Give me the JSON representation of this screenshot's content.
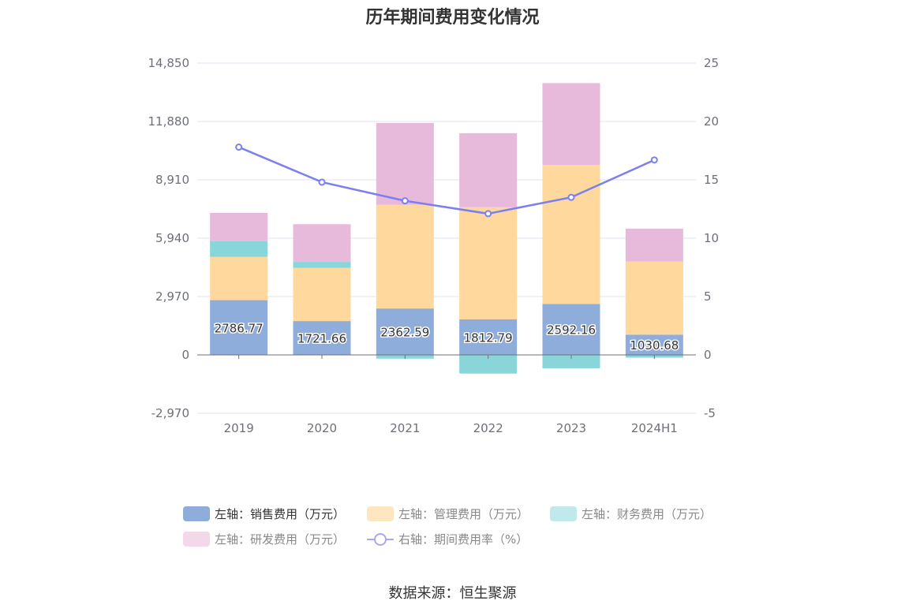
{
  "chart_data": {
    "type": "bar",
    "title": "历年期间费用变化情况",
    "categories": [
      "2019",
      "2020",
      "2021",
      "2022",
      "2023",
      "2024H1"
    ],
    "left_axis": {
      "ticks": [
        "14,850",
        "11,880",
        "8,910",
        "5,940",
        "2,970",
        "0",
        "-2,970"
      ],
      "ylim": [
        -2970,
        14850
      ]
    },
    "right_axis": {
      "ticks": [
        "25",
        "20",
        "15",
        "10",
        "5",
        "0",
        "-5"
      ],
      "ylim": [
        -5,
        25
      ]
    },
    "series": [
      {
        "name": "左轴：销售费用（万元）",
        "type": "bar",
        "axis": "left",
        "color": "#8eaddb",
        "values": [
          2786.77,
          1721.66,
          2362.59,
          1812.79,
          2592.16,
          1030.68
        ],
        "labels": [
          "2786.77",
          "1721.66",
          "2362.59",
          "1812.79",
          "2592.16",
          "1030.68"
        ]
      },
      {
        "name": "左轴：管理费用（万元）",
        "type": "bar",
        "axis": "left",
        "color": "#fed89d",
        "values": [
          2200,
          2710,
          5270,
          5700,
          7080,
          3720
        ]
      },
      {
        "name": "左轴：财务费用（万元）",
        "type": "bar",
        "axis": "left",
        "color": "#88d6da",
        "values": [
          800,
          300,
          -190,
          -950,
          -680,
          -140
        ]
      },
      {
        "name": "左轴：研发费用（万元）",
        "type": "bar",
        "axis": "left",
        "color": "#e7b9da",
        "values": [
          1440,
          1920,
          4170,
          3770,
          4160,
          1670
        ]
      },
      {
        "name": "右轴：期间费用率（%）",
        "type": "line",
        "axis": "right",
        "color": "#7b7ff0",
        "values": [
          17.8,
          14.8,
          13.2,
          12.1,
          13.5,
          16.7
        ]
      }
    ],
    "grid": true,
    "legend_position": "bottom"
  },
  "source": "数据来源：恒生聚源"
}
